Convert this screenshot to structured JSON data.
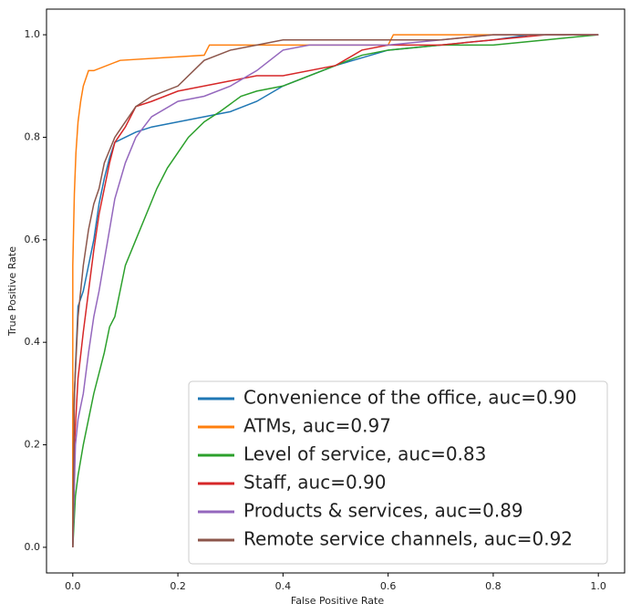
{
  "chart_data": {
    "type": "line",
    "xlabel": "False Positive Rate",
    "ylabel": "True Positive Rate",
    "xlim": [
      -0.05,
      1.05
    ],
    "ylim": [
      -0.05,
      1.05
    ],
    "xticks": [
      {
        "value": 0,
        "label": "0.0"
      },
      0.2,
      0.4,
      0.6,
      0.8,
      {
        "value": 1,
        "label": "1.0"
      }
    ],
    "yticks": [
      {
        "value": 0,
        "label": "0.0"
      },
      0.2,
      0.4,
      0.6,
      0.8,
      {
        "value": 1,
        "label": "1.0"
      }
    ],
    "legend": "lower right",
    "series": [
      {
        "name": "Convenience of the office, auc=0.90",
        "color": "#1f77b4",
        "x": [
          0,
          0,
          0.005,
          0.01,
          0.02,
          0.03,
          0.04,
          0.05,
          0.06,
          0.07,
          0.08,
          0.1,
          0.12,
          0.15,
          0.2,
          0.25,
          0.3,
          0.35,
          0.4,
          0.5,
          0.6,
          0.7,
          0.8,
          0.87,
          1.0
        ],
        "values": [
          0,
          0.2,
          0.35,
          0.47,
          0.5,
          0.55,
          0.6,
          0.67,
          0.72,
          0.76,
          0.79,
          0.8,
          0.81,
          0.82,
          0.83,
          0.84,
          0.85,
          0.87,
          0.9,
          0.94,
          0.97,
          0.98,
          0.99,
          1.0,
          1.0
        ]
      },
      {
        "name": "ATMs, auc=0.97",
        "color": "#ff7f0e",
        "x": [
          0,
          0,
          0.003,
          0.006,
          0.01,
          0.015,
          0.02,
          0.03,
          0.04,
          0.09,
          0.25,
          0.26,
          0.6,
          0.61,
          1.0
        ],
        "values": [
          0,
          0.55,
          0.69,
          0.77,
          0.83,
          0.87,
          0.9,
          0.93,
          0.93,
          0.95,
          0.96,
          0.98,
          0.98,
          1.0,
          1.0
        ]
      },
      {
        "name": "Level of service, auc=0.83",
        "color": "#2ca02c",
        "x": [
          0,
          0.005,
          0.01,
          0.02,
          0.03,
          0.04,
          0.05,
          0.06,
          0.07,
          0.08,
          0.1,
          0.12,
          0.14,
          0.16,
          0.18,
          0.2,
          0.22,
          0.25,
          0.28,
          0.32,
          0.35,
          0.4,
          0.45,
          0.5,
          0.55,
          0.6,
          0.7,
          0.8,
          0.9,
          1.0
        ],
        "values": [
          0,
          0.1,
          0.14,
          0.2,
          0.25,
          0.3,
          0.34,
          0.38,
          0.43,
          0.45,
          0.55,
          0.6,
          0.65,
          0.7,
          0.74,
          0.77,
          0.8,
          0.83,
          0.85,
          0.88,
          0.89,
          0.9,
          0.92,
          0.94,
          0.96,
          0.97,
          0.98,
          0.98,
          0.99,
          1.0
        ]
      },
      {
        "name": "Staff, auc=0.90",
        "color": "#d62728",
        "x": [
          0,
          0.003,
          0.01,
          0.02,
          0.03,
          0.04,
          0.05,
          0.06,
          0.07,
          0.08,
          0.1,
          0.12,
          0.15,
          0.2,
          0.25,
          0.3,
          0.35,
          0.4,
          0.5,
          0.55,
          0.6,
          0.7,
          0.8,
          0.9,
          1.0
        ],
        "values": [
          0,
          0.2,
          0.33,
          0.42,
          0.5,
          0.58,
          0.65,
          0.7,
          0.75,
          0.79,
          0.82,
          0.86,
          0.87,
          0.89,
          0.9,
          0.91,
          0.92,
          0.92,
          0.94,
          0.97,
          0.98,
          0.98,
          0.99,
          1.0,
          1.0
        ]
      },
      {
        "name": "Products & services, auc=0.89",
        "color": "#9467bd",
        "x": [
          0,
          0.005,
          0.01,
          0.02,
          0.03,
          0.04,
          0.05,
          0.06,
          0.07,
          0.08,
          0.1,
          0.12,
          0.15,
          0.2,
          0.25,
          0.3,
          0.35,
          0.4,
          0.45,
          0.5,
          0.6,
          0.7,
          0.8,
          0.9,
          1.0
        ],
        "values": [
          0,
          0.2,
          0.25,
          0.3,
          0.38,
          0.45,
          0.5,
          0.56,
          0.62,
          0.68,
          0.75,
          0.8,
          0.84,
          0.87,
          0.88,
          0.9,
          0.93,
          0.97,
          0.98,
          0.98,
          0.98,
          0.99,
          1.0,
          1.0,
          1.0
        ]
      },
      {
        "name": "Remote service channels, auc=0.92",
        "color": "#8c564b",
        "x": [
          0,
          0.003,
          0.01,
          0.02,
          0.03,
          0.04,
          0.05,
          0.06,
          0.08,
          0.1,
          0.12,
          0.15,
          0.2,
          0.25,
          0.3,
          0.35,
          0.4,
          0.5,
          0.6,
          0.7,
          0.8,
          0.9,
          1.0
        ],
        "values": [
          0,
          0.3,
          0.45,
          0.55,
          0.62,
          0.67,
          0.7,
          0.75,
          0.8,
          0.83,
          0.86,
          0.88,
          0.9,
          0.95,
          0.97,
          0.98,
          0.99,
          0.99,
          0.99,
          0.99,
          1.0,
          1.0,
          1.0
        ]
      }
    ]
  }
}
